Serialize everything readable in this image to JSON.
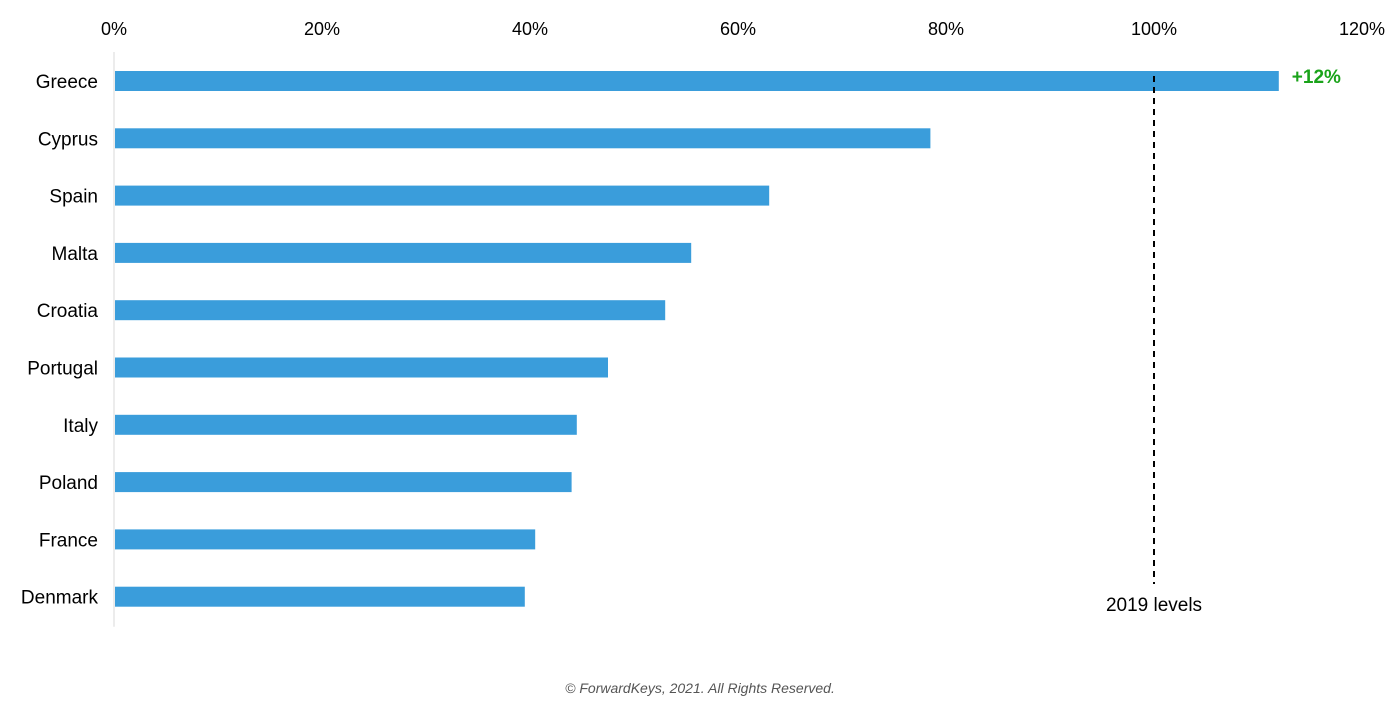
{
  "chart_data": {
    "type": "bar",
    "orientation": "horizontal",
    "categories": [
      "Greece",
      "Cyprus",
      "Spain",
      "Malta",
      "Croatia",
      "Portugal",
      "Italy",
      "Poland",
      "France",
      "Denmark"
    ],
    "values": [
      112,
      78.5,
      63,
      55.5,
      53,
      47.5,
      44.5,
      44,
      40.5,
      39.5
    ],
    "xlim": [
      0,
      120
    ],
    "xticks": [
      0,
      20,
      40,
      60,
      80,
      100,
      120
    ],
    "xtick_labels": [
      "0%",
      "20%",
      "40%",
      "60%",
      "80%",
      "100%",
      "120%"
    ],
    "x_axis_position": "top",
    "grid": false,
    "reference_line": {
      "value": 100,
      "label": "2019 levels",
      "style": "dashed"
    },
    "annotation": {
      "category": "Greece",
      "text": "+12%",
      "color": "#1aa31a"
    },
    "bar_color": "#3a9ddb"
  },
  "footer": "© ForwardKeys, 2021. All Rights Reserved."
}
